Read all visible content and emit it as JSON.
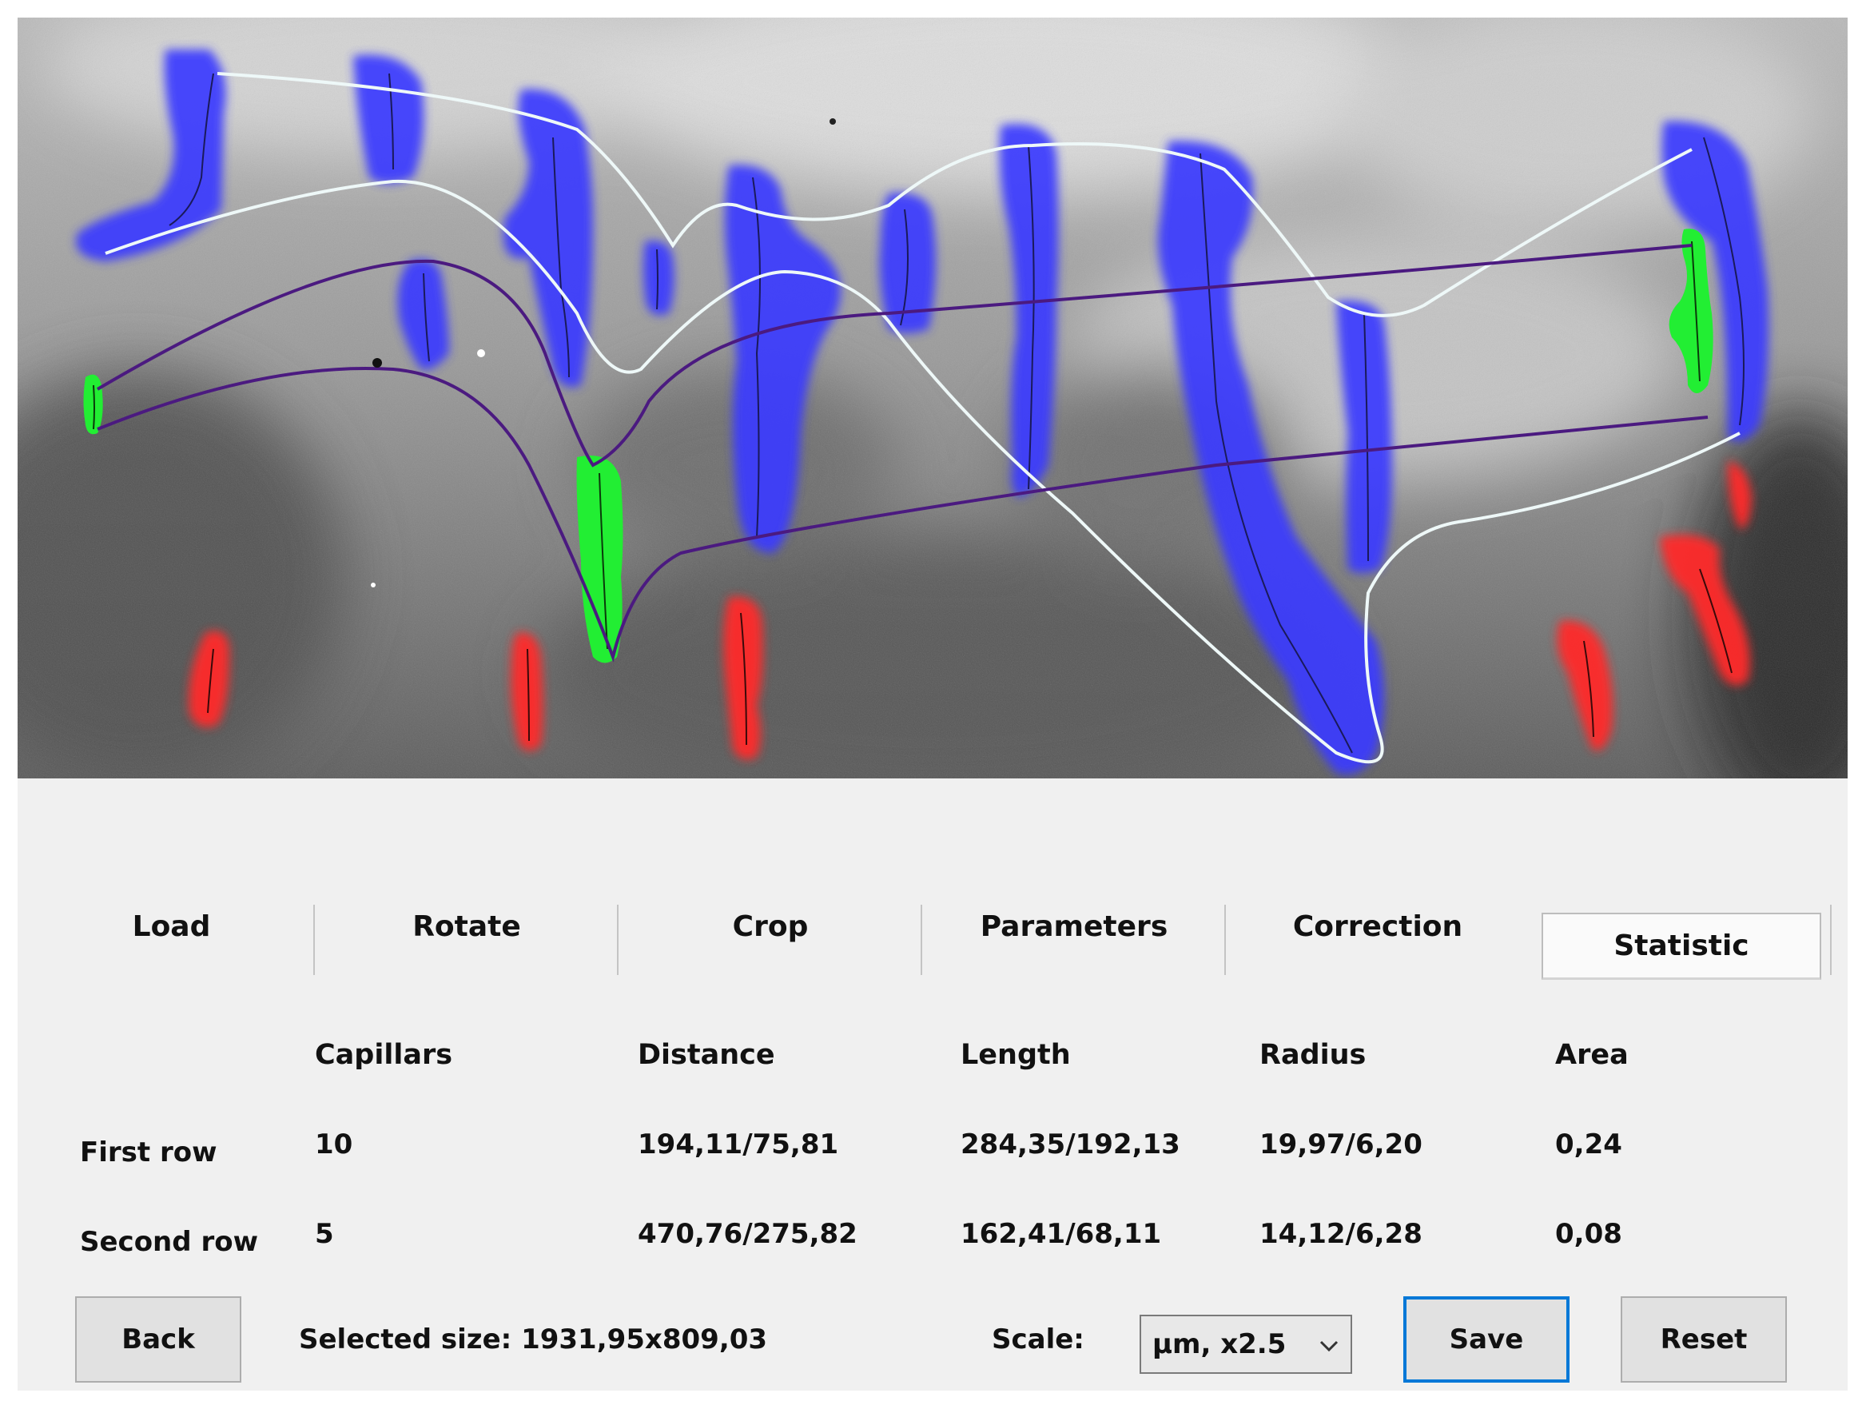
{
  "tabs": [
    {
      "label": "Load"
    },
    {
      "label": "Rotate"
    },
    {
      "label": "Crop"
    },
    {
      "label": "Parameters"
    },
    {
      "label": "Correction"
    },
    {
      "label": "Statistic",
      "active": true
    }
  ],
  "statistics": {
    "columns": [
      "Capillars",
      "Distance",
      "Length",
      "Radius",
      "Area"
    ],
    "rows": [
      {
        "label": "First row",
        "capillars": "10",
        "distance": "194,11/75,81",
        "length": "284,35/192,13",
        "radius": "19,97/6,20",
        "area": "0,24"
      },
      {
        "label": "Second row",
        "capillars": "5",
        "distance": "470,76/275,82",
        "length": "162,41/68,11",
        "radius": "14,12/6,28",
        "area": "0,08"
      }
    ]
  },
  "footer": {
    "back_label": "Back",
    "selected_size_label": "Selected size: 1931,95x809,03",
    "scale_label": "Scale:",
    "scale_value": "µm, x2.5",
    "save_label": "Save",
    "reset_label": "Reset"
  },
  "image": {
    "segment_colors": {
      "first_row": "#3b3bff",
      "second_row": "#ff2a2a",
      "selected": "#22ee33",
      "border_line": "#eef8f8",
      "connector_line": "#4b1a80"
    },
    "background": "grayscale capillaroscopy micrograph"
  }
}
